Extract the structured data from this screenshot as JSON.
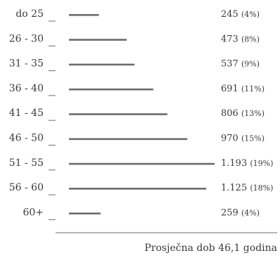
{
  "chart_data": {
    "type": "bar",
    "orientation": "horizontal",
    "categories": [
      "do 25",
      "26 - 30",
      "31 - 35",
      "36 - 40",
      "41 - 45",
      "46 - 50",
      "51 - 55",
      "56 - 60",
      "60+"
    ],
    "values": [
      245,
      473,
      537,
      691,
      806,
      970,
      1193,
      1125,
      259
    ],
    "value_labels": [
      "245",
      "473",
      "537",
      "691",
      "806",
      "970",
      "1.193",
      "1.125",
      "259"
    ],
    "percent_labels": [
      "(4%)",
      "(8%)",
      "(9%)",
      "(11%)",
      "(13%)",
      "(15%)",
      "(19%)",
      "(18%)",
      "(4%)"
    ],
    "footnote": "Prosječna dob 46,1 godina",
    "colors": {
      "bar": "#6b6b6b",
      "axis": "#6b6b6b",
      "text": "#3a3a3a"
    },
    "grid": false,
    "legend": "none"
  }
}
